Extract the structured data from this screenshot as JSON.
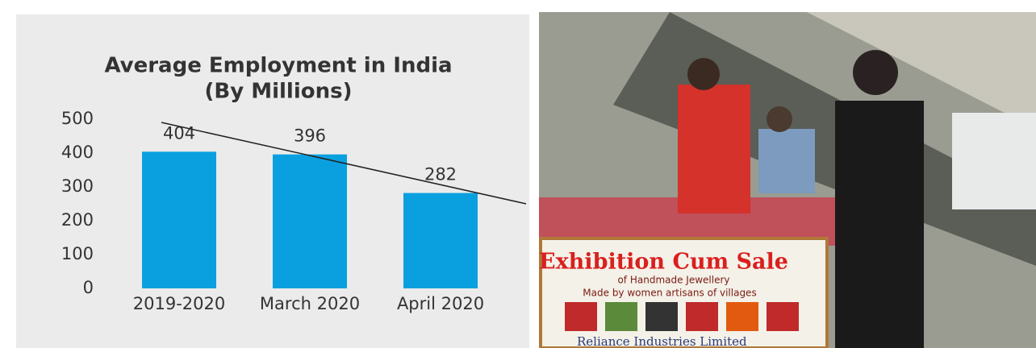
{
  "chart_data": {
    "type": "bar",
    "title": "Average Employment in India",
    "subtitle": "(By Millions)",
    "categories": [
      "2019-2020",
      "March 2020",
      "April 2020"
    ],
    "values": [
      404,
      396,
      282
    ],
    "color": "#0aa0e0",
    "ylim": [
      0,
      500
    ],
    "yticks": [
      0,
      100,
      200,
      300,
      400,
      500
    ],
    "grid": false
  },
  "photo": {
    "banner": {
      "title": "Exhibition Cum Sale",
      "subtitle": "of Handmade Jewellery",
      "tagline": "Made by women artisans of villages",
      "sponsor": "Reliance Industries Limited"
    }
  }
}
